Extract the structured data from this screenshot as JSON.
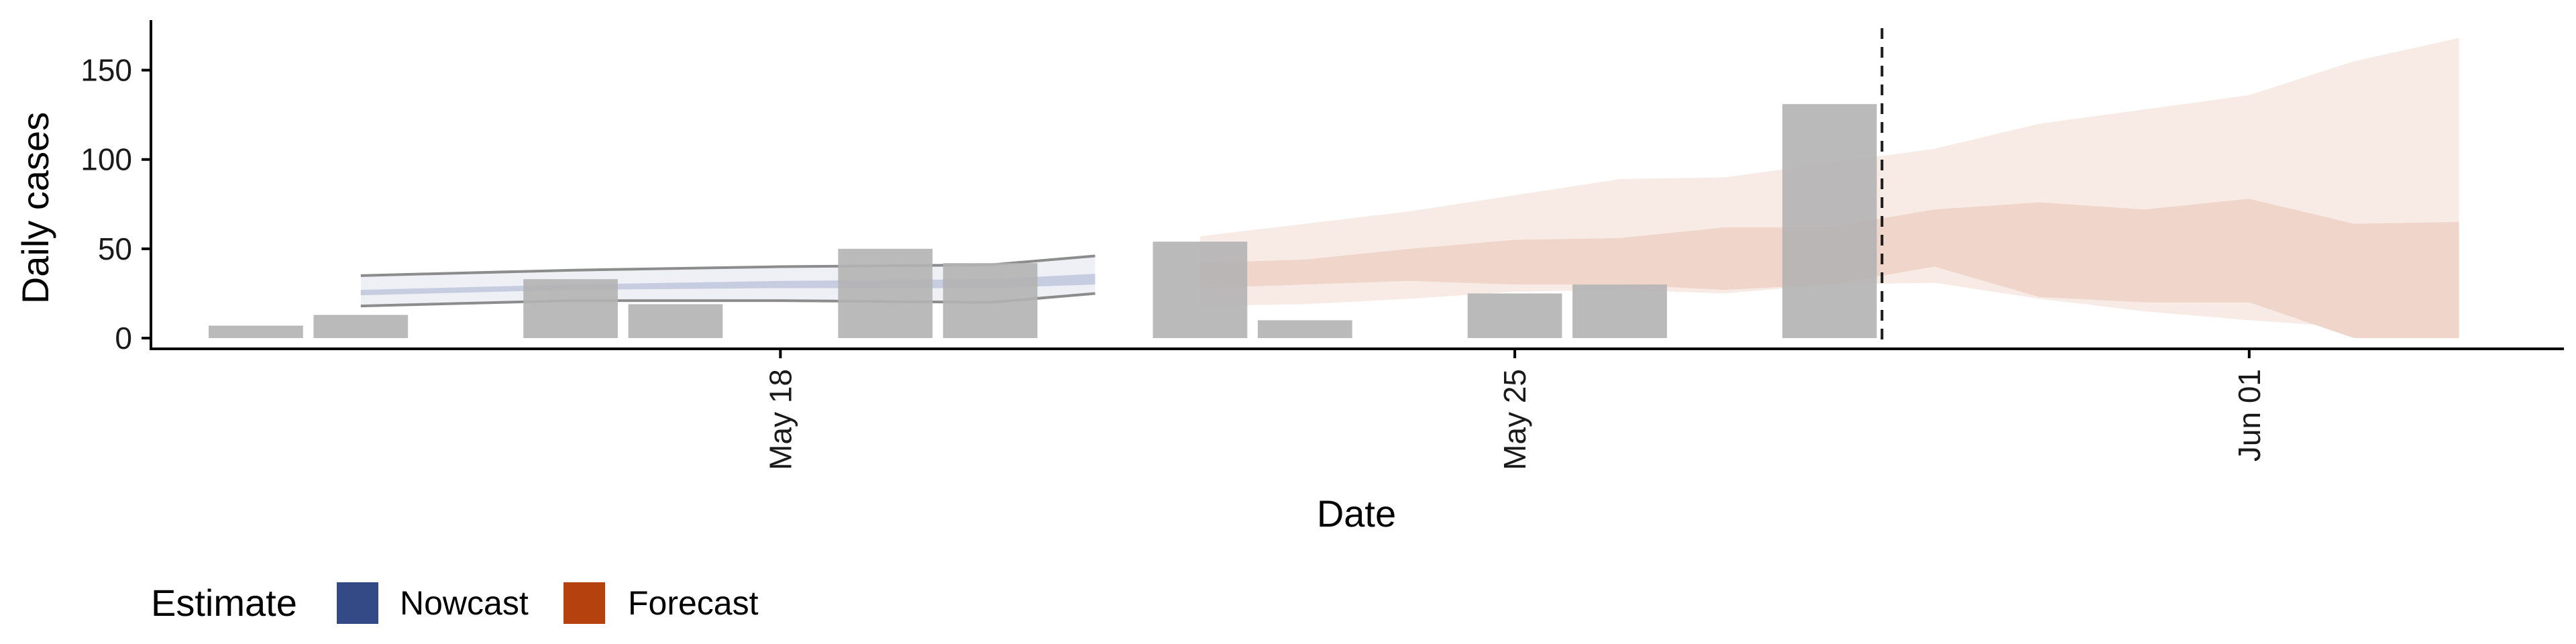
{
  "chart_data": {
    "type": "bar",
    "xlabel": "Date",
    "ylabel": "Daily cases",
    "x_domain": [
      "2020-05-12",
      "2020-06-04"
    ],
    "ylim": [
      -6,
      178
    ],
    "y_ticks": [
      0,
      50,
      100,
      150
    ],
    "x_ticks": [
      {
        "date": "2020-05-18",
        "label": "May 18"
      },
      {
        "date": "2020-05-25",
        "label": "May 25"
      },
      {
        "date": "2020-06-01",
        "label": "Jun 01"
      }
    ],
    "reported_cases": {
      "dates": [
        "2020-05-13",
        "2020-05-14",
        "2020-05-16",
        "2020-05-17",
        "2020-05-19",
        "2020-05-20",
        "2020-05-22",
        "2020-05-23",
        "2020-05-25",
        "2020-05-26",
        "2020-05-28"
      ],
      "values": [
        7,
        13,
        33,
        19,
        50,
        42,
        54,
        10,
        25,
        30,
        131
      ]
    },
    "forecast_start": "2020-05-29",
    "legend": {
      "title": "Estimate",
      "items": [
        {
          "label": "Nowcast",
          "color": "#344a87"
        },
        {
          "label": "Forecast",
          "color": "#b5410f"
        }
      ]
    },
    "nowcast": {
      "dates": [
        "2020-05-14",
        "2020-05-16",
        "2020-05-18",
        "2020-05-20",
        "2020-05-21"
      ],
      "lower_90": [
        18,
        21,
        21,
        20,
        25
      ],
      "upper_90": [
        35,
        38,
        40,
        41,
        46
      ],
      "lower_50": [
        24,
        27,
        28,
        28,
        30
      ],
      "upper_50": [
        27,
        30,
        32,
        33,
        36
      ]
    },
    "forecast": {
      "dates": [
        "2020-05-22",
        "2020-05-23",
        "2020-05-24",
        "2020-05-25",
        "2020-05-26",
        "2020-05-27",
        "2020-05-28",
        "2020-05-29",
        "2020-05-30",
        "2020-05-31",
        "2020-06-01",
        "2020-06-02",
        "2020-06-03"
      ],
      "lower_90": [
        18,
        19,
        22,
        26,
        27,
        25,
        30,
        31,
        22,
        15,
        10,
        6,
        5
      ],
      "upper_90": [
        57,
        64,
        71,
        80,
        89,
        90,
        98,
        106,
        120,
        128,
        136,
        155,
        168
      ],
      "lower_50": [
        28,
        30,
        32,
        30,
        30,
        27,
        30,
        40,
        23,
        20,
        20,
        0,
        0
      ],
      "upper_50": [
        42,
        44,
        50,
        55,
        56,
        62,
        62,
        72,
        76,
        72,
        78,
        64,
        65
      ]
    },
    "colors": {
      "bars": "#b3b3b3",
      "nowcast_band_outer": "#eef0f5",
      "nowcast_band_inner": "#c6cde0",
      "nowcast_edge": "#8c8c8c",
      "forecast_band_outer": "#f8ebe6",
      "forecast_band_inner": "#efd5ca",
      "dashed_line": "#1a1a1a",
      "axis": "#000000"
    }
  }
}
